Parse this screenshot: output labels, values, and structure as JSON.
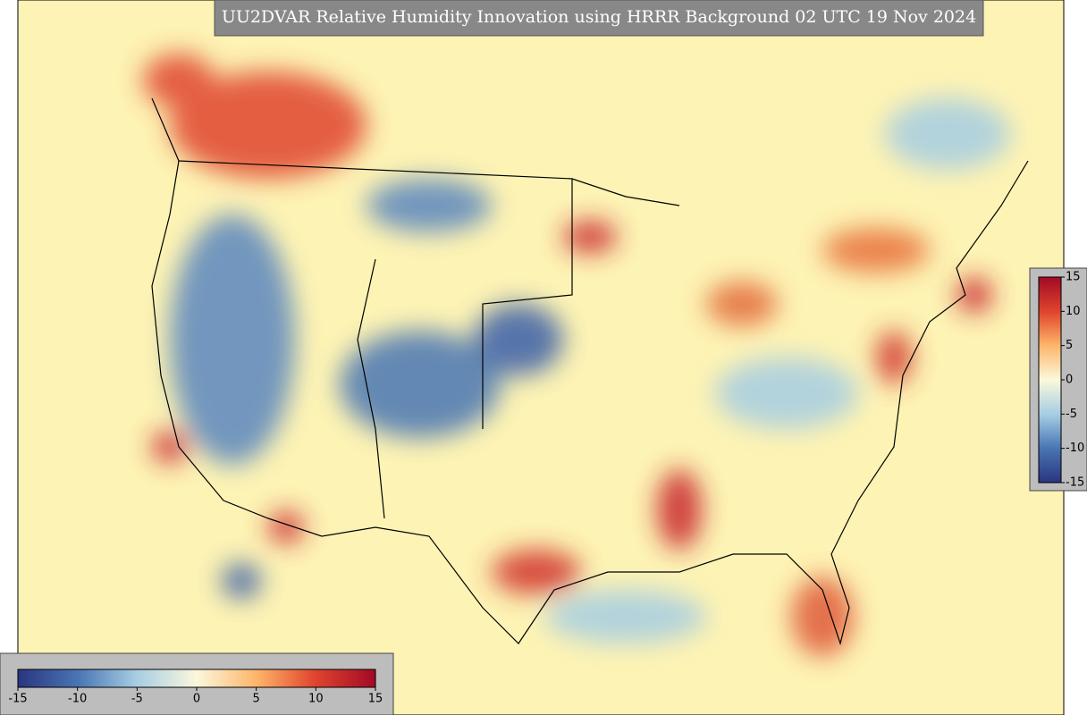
{
  "title": "UU2DVAR Relative Humidity Innovation using HRRR Background 02 UTC 19 Nov 2024",
  "colorbar_horizontal": {
    "range": [
      -15,
      15
    ],
    "ticks": [
      -15,
      -10,
      -5,
      0,
      5,
      10,
      15
    ]
  },
  "colorbar_vertical": {
    "range": [
      -15,
      15
    ],
    "ticks": [
      15,
      10,
      5,
      0,
      -5,
      -10,
      -15
    ]
  }
}
